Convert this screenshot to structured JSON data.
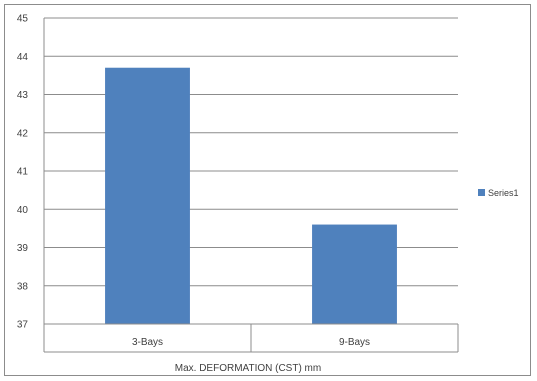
{
  "chart_data": {
    "type": "bar",
    "categories": [
      "3-Bays",
      "9-Bays"
    ],
    "series": [
      {
        "name": "Series1",
        "values": [
          43.7,
          39.6
        ]
      }
    ],
    "xlabel": "Max. DEFORMATION (CST) mm",
    "ylabel": "",
    "ylim": [
      37,
      45
    ],
    "yticks": [
      "37",
      "38",
      "39",
      "40",
      "41",
      "42",
      "43",
      "44",
      "45"
    ],
    "grid": true,
    "legend": "right",
    "colors": {
      "bar": "#4f81bd",
      "grid": "#8c8c8c",
      "axis": "#8c8c8c",
      "text": "#404040"
    }
  }
}
